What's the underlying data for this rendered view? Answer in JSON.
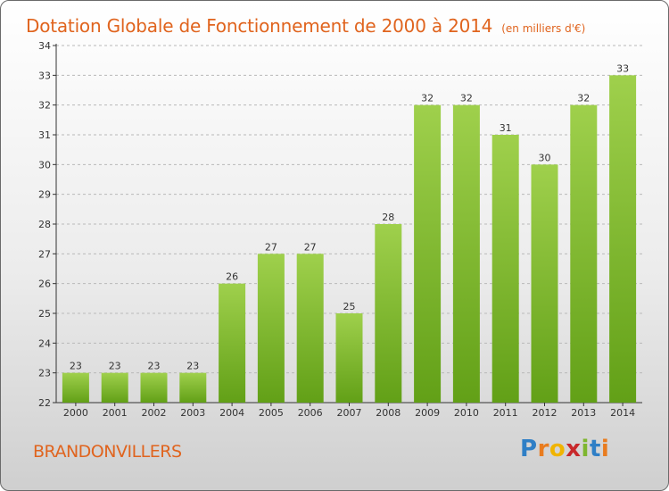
{
  "chart_title": "Dotation Globale de Fonctionnement de 2000 à 2014",
  "unit_label": "(en milliers d'€)",
  "commune": "BRANDONVILLERS",
  "brand": {
    "letters": [
      "P",
      "r",
      "o",
      "x",
      "i",
      "t",
      "i"
    ],
    "colors": [
      "#2f7fc6",
      "#e97c1f",
      "#f0b400",
      "#c8282b",
      "#7eb62f",
      "#2f7fc6",
      "#e97c1f"
    ]
  },
  "colors": {
    "bar_light": "#9fd04c",
    "bar_dark": "#62a017",
    "title": "#e0641e",
    "grid": "#b9b9b9"
  },
  "chart_data": {
    "type": "bar",
    "categories": [
      "2000",
      "2001",
      "2002",
      "2003",
      "2004",
      "2005",
      "2006",
      "2007",
      "2008",
      "2009",
      "2010",
      "2011",
      "2012",
      "2013",
      "2014"
    ],
    "values": [
      23,
      23,
      23,
      23,
      26,
      27,
      27,
      25,
      28,
      32,
      32,
      31,
      30,
      32,
      33
    ],
    "ylim": [
      22,
      34
    ],
    "yticks": [
      22,
      23,
      24,
      25,
      26,
      27,
      28,
      29,
      30,
      31,
      32,
      33,
      34
    ],
    "grid": true,
    "data_labels": true
  }
}
